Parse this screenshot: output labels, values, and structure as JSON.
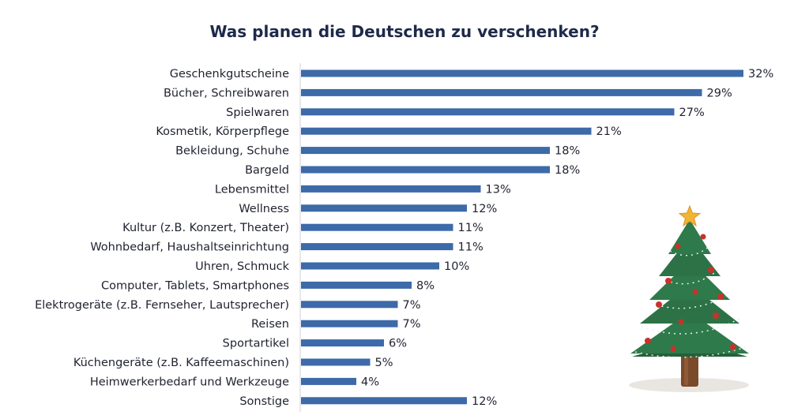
{
  "chart_data": {
    "type": "bar",
    "orientation": "horizontal",
    "title": "Was planen die Deutschen zu verschenken?",
    "categories": [
      "Geschenkgutscheine",
      "Bücher, Schreibwaren",
      "Spielwaren",
      "Kosmetik, Körperpflege",
      "Bekleidung, Schuhe",
      "Bargeld",
      "Lebensmittel",
      "Wellness",
      "Kultur (z.B. Konzert, Theater)",
      "Wohnbedarf, Haushaltseinrichtung",
      "Uhren, Schmuck",
      "Computer, Tablets, Smartphones",
      "Elektrogeräte (z.B. Fernseher, Lautsprecher)",
      "Reisen",
      "Sportartikel",
      "Küchengeräte (z.B. Kaffeemaschinen)",
      "Heimwerkerbedarf und Werkzeuge",
      "Sonstige"
    ],
    "values": [
      32,
      29,
      27,
      21,
      18,
      18,
      13,
      12,
      11,
      11,
      10,
      8,
      7,
      7,
      6,
      5,
      4,
      12
    ],
    "value_labels": [
      "32%",
      "29%",
      "27%",
      "21%",
      "18%",
      "18%",
      "13%",
      "12%",
      "11%",
      "11%",
      "10%",
      "8%",
      "7%",
      "7%",
      "6%",
      "5%",
      "4%",
      "12%"
    ],
    "unit": "%",
    "xlim": [
      0,
      32
    ],
    "grid": false,
    "bar_color": "#3d6aa8"
  },
  "colors": {
    "title": "#1e2a4a",
    "text": "#1f2230",
    "tree_green": "#2f7a4a",
    "trunk": "#7a4a2a",
    "star": "#f2b431",
    "ornament": "#c8322c"
  },
  "decoration": {
    "icon": "christmas-tree-icon"
  }
}
